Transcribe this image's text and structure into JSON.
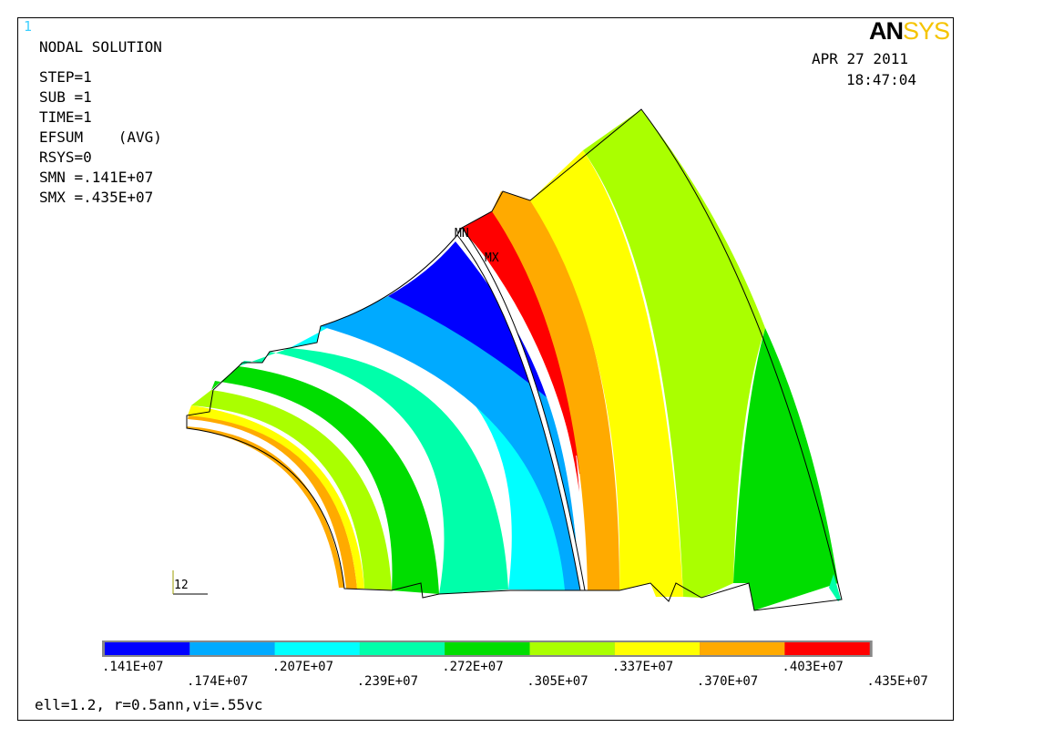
{
  "window_number": "1",
  "logo": {
    "part1": "AN",
    "part2": "SYS"
  },
  "header": {
    "title": "NODAL SOLUTION",
    "lines": [
      "STEP=1",
      "SUB =1",
      "TIME=1",
      "EFSUM    (AVG)",
      "RSYS=0",
      "SMN =.141E+07",
      "SMX =.435E+07"
    ]
  },
  "date": "APR 27 2011",
  "time": "18:47:04",
  "markers": {
    "min": "MN",
    "max": "MX"
  },
  "triad_label": "12",
  "legend": {
    "colors": [
      "#0000ff",
      "#00aaff",
      "#00ffff",
      "#00ffaa",
      "#00dd00",
      "#aaff00",
      "#ffff00",
      "#ffaa00",
      "#ff0000"
    ],
    "labels_top": [
      ".141E+07",
      ".207E+07",
      ".272E+07",
      ".337E+07",
      ".403E+07"
    ],
    "labels_bottom": [
      ".174E+07",
      ".239E+07",
      ".305E+07",
      ".370E+07",
      ".435E+07"
    ]
  },
  "footer": "ell=1.2, r=0.5ann,vi=.55vc"
}
